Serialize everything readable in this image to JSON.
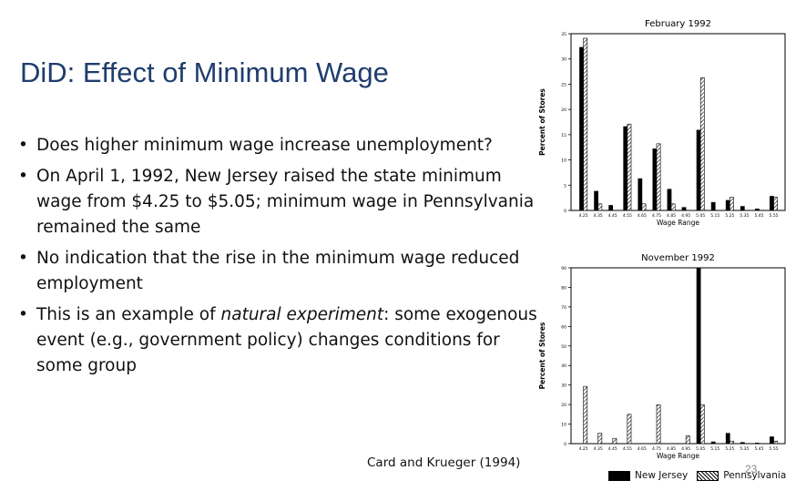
{
  "slide": {
    "title": "DiD: Effect of Minimum Wage",
    "bullets": [
      {
        "text": "Does higher minimum wage increase unemployment?"
      },
      {
        "text": "On April 1, 1992, New Jersey raised the state minimum wage from $4.25 to $5.05; minimum wage in Pennsylvania remained the same"
      },
      {
        "text": "No indication that the rise in the minimum wage reduced employment"
      },
      {
        "pre": "This is an example of ",
        "em": "natural experiment",
        "post": ": some exogenous event (e.g., government policy) changes conditions for some group"
      }
    ],
    "source": "Card and Krueger (1994)",
    "page_number": "23"
  },
  "legend": {
    "nj": "New Jersey",
    "pa": "Pennsylvania"
  },
  "chart_data": [
    {
      "type": "bar",
      "title": "February 1992",
      "xlabel": "Wage Range",
      "ylabel": "Percent of Stores",
      "categories": [
        "4.25",
        "4.35",
        "4.45",
        "4.55",
        "4.65",
        "4.75",
        "4.85",
        "4.95",
        "5.05",
        "5.15",
        "5.25",
        "5.35",
        "5.45",
        "5.55"
      ],
      "ylim": [
        0,
        35
      ],
      "yticks": [
        0,
        5,
        10,
        15,
        20,
        25,
        30,
        35
      ],
      "series": [
        {
          "name": "New Jersey",
          "values": [
            32.3,
            3.8,
            1.0,
            16.6,
            6.3,
            12.2,
            4.2,
            0.6,
            15.9,
            1.6,
            2.0,
            0.8,
            0.3,
            2.8
          ]
        },
        {
          "name": "Pennsylvania",
          "values": [
            34.1,
            1.3,
            0.0,
            17.1,
            1.3,
            13.2,
            1.3,
            0.0,
            26.3,
            0.0,
            2.6,
            0.0,
            0.0,
            2.6
          ]
        }
      ]
    },
    {
      "type": "bar",
      "title": "November 1992",
      "xlabel": "Wage Range",
      "ylabel": "Percent of Stores",
      "categories": [
        "4.25",
        "4.35",
        "4.45",
        "4.55",
        "4.65",
        "4.75",
        "4.85",
        "4.95",
        "5.05",
        "5.15",
        "5.25",
        "5.35",
        "5.45",
        "5.55"
      ],
      "ylim": [
        0,
        90
      ],
      "yticks": [
        0,
        10,
        20,
        30,
        40,
        50,
        60,
        70,
        80,
        90
      ],
      "series": [
        {
          "name": "New Jersey",
          "values": [
            0,
            0,
            0,
            0,
            0,
            0,
            0,
            0,
            90.0,
            0.9,
            5.3,
            0.6,
            0.3,
            3.5
          ]
        },
        {
          "name": "Pennsylvania",
          "values": [
            29.3,
            5.3,
            2.7,
            15.0,
            0,
            19.9,
            0,
            4.0,
            19.9,
            0,
            1.3,
            0,
            0,
            1.3
          ]
        }
      ]
    }
  ]
}
